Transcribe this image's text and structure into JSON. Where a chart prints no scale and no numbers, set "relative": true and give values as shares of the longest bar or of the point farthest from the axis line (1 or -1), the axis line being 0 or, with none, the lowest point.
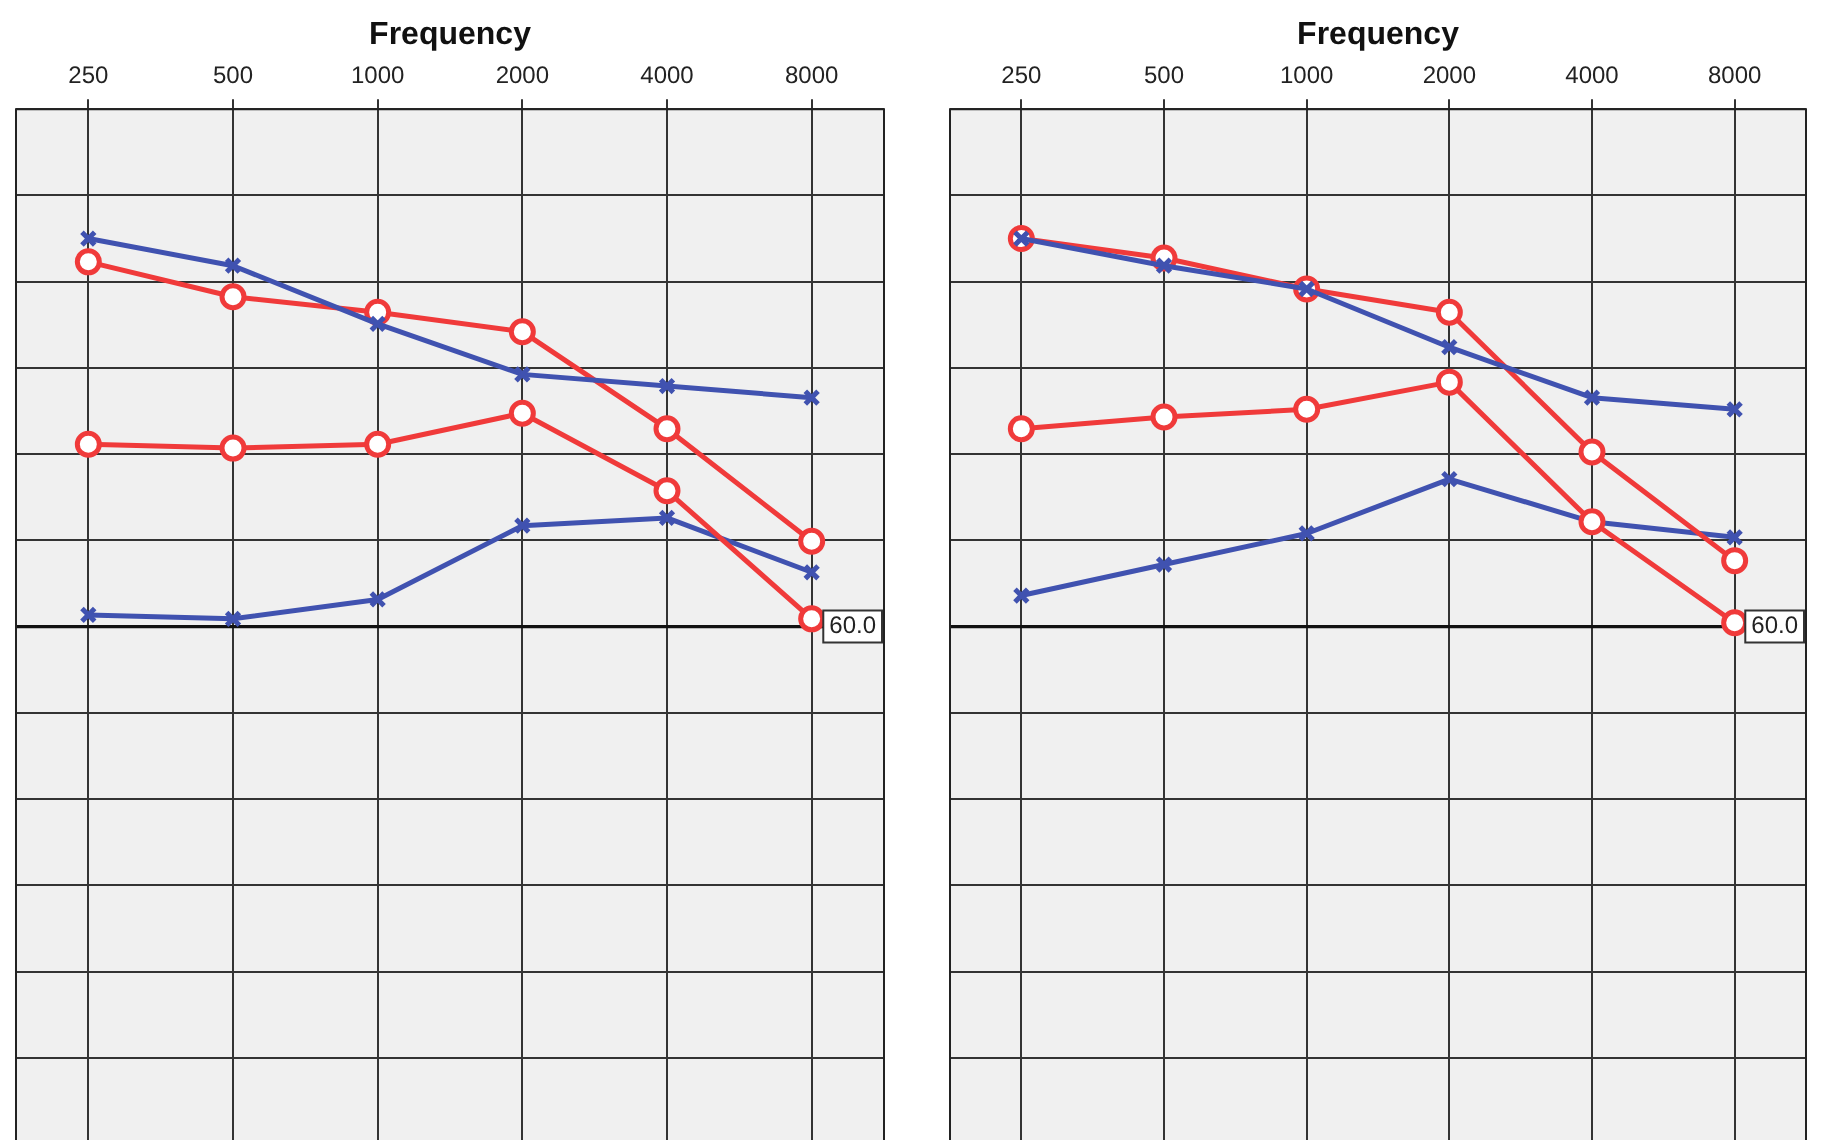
{
  "chart_data": [
    {
      "type": "line",
      "xlabel": "Frequency",
      "categories": [
        "250",
        "500",
        "1000",
        "2000",
        "4000",
        "8000"
      ],
      "relative": true,
      "grid": true,
      "legend": false,
      "series": [
        {
          "color": "#4052b0",
          "marker": "cross",
          "values": [
            1.0,
            0.93,
            0.78,
            0.65,
            0.62,
            0.59
          ]
        },
        {
          "color": "#f03a3a",
          "marker": "circle",
          "values": [
            0.94,
            0.85,
            0.81,
            0.76,
            0.51,
            0.22
          ]
        },
        {
          "color": "#f03a3a",
          "marker": "circle",
          "values": [
            0.47,
            0.46,
            0.47,
            0.55,
            0.35,
            0.02
          ]
        },
        {
          "color": "#4052b0",
          "marker": "cross",
          "values": [
            0.03,
            0.02,
            0.07,
            0.26,
            0.28,
            0.14
          ]
        }
      ],
      "ref_lines": [
        {
          "axis": "y",
          "value": 0
        }
      ],
      "annotations": [
        {
          "text": "60.0",
          "x": "8000",
          "y": 0
        }
      ]
    },
    {
      "type": "line",
      "xlabel": "Frequency",
      "categories": [
        "250",
        "500",
        "1000",
        "2000",
        "4000",
        "8000"
      ],
      "relative": true,
      "grid": true,
      "legend": false,
      "series": [
        {
          "color": "#4052b0",
          "marker": "cross",
          "values": [
            1.0,
            0.93,
            0.87,
            0.72,
            0.59,
            0.56
          ]
        },
        {
          "color": "#f03a3a",
          "marker": "circle",
          "values": [
            1.0,
            0.95,
            0.87,
            0.81,
            0.45,
            0.17
          ]
        },
        {
          "color": "#f03a3a",
          "marker": "circle",
          "values": [
            0.51,
            0.54,
            0.56,
            0.63,
            0.27,
            0.01
          ]
        },
        {
          "color": "#4052b0",
          "marker": "cross",
          "values": [
            0.08,
            0.16,
            0.24,
            0.38,
            0.27,
            0.23
          ]
        }
      ],
      "ref_lines": [
        {
          "axis": "y",
          "value": 0
        }
      ],
      "annotations": [
        {
          "text": "60.0",
          "x": "8000",
          "y": 0
        }
      ]
    }
  ]
}
